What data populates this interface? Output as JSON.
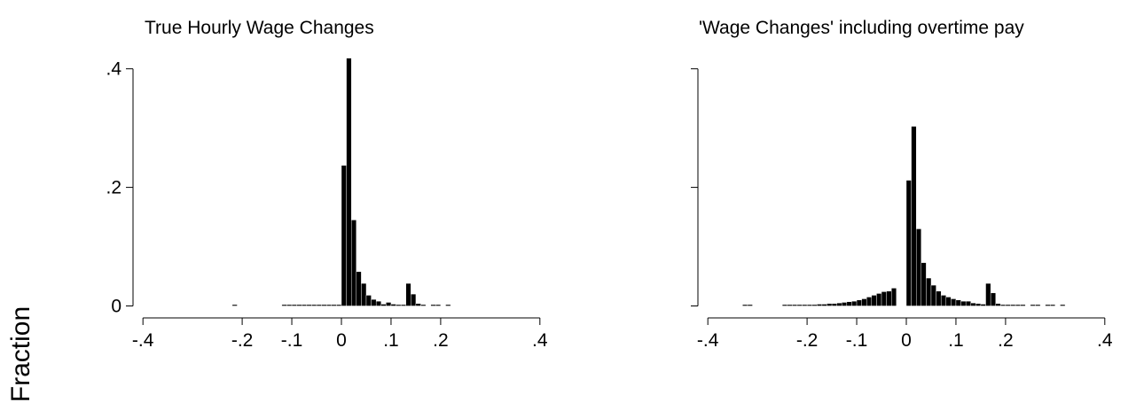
{
  "figure": {
    "ylabel": "Fraction"
  },
  "chart_data": [
    {
      "type": "bar",
      "title": "True Hourly Wage Changes",
      "xlabel": "",
      "ylabel": "Fraction",
      "xlim": [
        -0.42,
        0.42
      ],
      "ylim": [
        0,
        0.41
      ],
      "bin_width": 0.01,
      "x_ticks": [
        -0.4,
        -0.2,
        -0.1,
        0,
        0.1,
        0.2,
        0.4
      ],
      "x_tick_labels": [
        "-.4",
        "-.2",
        "-.1",
        "0",
        ".1",
        ".2",
        ".4"
      ],
      "y_ticks": [
        0,
        0.2,
        0.4
      ],
      "y_tick_labels": [
        "0",
        ".2",
        ".4"
      ],
      "show_y_tick_labels": true,
      "bins": [
        {
          "x": -0.22,
          "y": 0.001
        },
        {
          "x": -0.12,
          "y": 0.001
        },
        {
          "x": -0.11,
          "y": 0.001
        },
        {
          "x": -0.1,
          "y": 0.001
        },
        {
          "x": -0.09,
          "y": 0.001
        },
        {
          "x": -0.08,
          "y": 0.001
        },
        {
          "x": -0.07,
          "y": 0.001
        },
        {
          "x": -0.06,
          "y": 0.001
        },
        {
          "x": -0.05,
          "y": 0.001
        },
        {
          "x": -0.04,
          "y": 0.001
        },
        {
          "x": -0.03,
          "y": 0.001
        },
        {
          "x": -0.02,
          "y": 0.001
        },
        {
          "x": -0.01,
          "y": 0.001
        },
        {
          "x": 0.0,
          "y": 0.237
        },
        {
          "x": 0.01,
          "y": 0.418
        },
        {
          "x": 0.02,
          "y": 0.145
        },
        {
          "x": 0.03,
          "y": 0.058
        },
        {
          "x": 0.04,
          "y": 0.038
        },
        {
          "x": 0.05,
          "y": 0.018
        },
        {
          "x": 0.06,
          "y": 0.011
        },
        {
          "x": 0.07,
          "y": 0.008
        },
        {
          "x": 0.08,
          "y": 0.003
        },
        {
          "x": 0.09,
          "y": 0.006
        },
        {
          "x": 0.1,
          "y": 0.003
        },
        {
          "x": 0.11,
          "y": 0.002
        },
        {
          "x": 0.12,
          "y": 0.002
        },
        {
          "x": 0.13,
          "y": 0.038
        },
        {
          "x": 0.14,
          "y": 0.02
        },
        {
          "x": 0.15,
          "y": 0.004
        },
        {
          "x": 0.16,
          "y": 0.001
        },
        {
          "x": 0.18,
          "y": 0.001
        },
        {
          "x": 0.19,
          "y": 0.001
        },
        {
          "x": 0.21,
          "y": 0.001
        }
      ]
    },
    {
      "type": "bar",
      "title": "'Wage Changes' including overtime pay",
      "xlabel": "",
      "ylabel": "Fraction",
      "xlim": [
        -0.42,
        0.42
      ],
      "ylim": [
        0,
        0.41
      ],
      "bin_width": 0.01,
      "x_ticks": [
        -0.4,
        -0.2,
        -0.1,
        0,
        0.1,
        0.2,
        0.4
      ],
      "x_tick_labels": [
        "-.4",
        "-.2",
        "-.1",
        "0",
        ".1",
        ".2",
        ".4"
      ],
      "y_ticks": [
        0,
        0.2,
        0.4
      ],
      "y_tick_labels": [
        "0",
        ".2",
        ".4"
      ],
      "show_y_tick_labels": false,
      "bins": [
        {
          "x": -0.33,
          "y": 0.001
        },
        {
          "x": -0.32,
          "y": 0.001
        },
        {
          "x": -0.25,
          "y": 0.001
        },
        {
          "x": -0.24,
          "y": 0.001
        },
        {
          "x": -0.23,
          "y": 0.001
        },
        {
          "x": -0.22,
          "y": 0.002
        },
        {
          "x": -0.21,
          "y": 0.002
        },
        {
          "x": -0.2,
          "y": 0.002
        },
        {
          "x": -0.19,
          "y": 0.002
        },
        {
          "x": -0.18,
          "y": 0.003
        },
        {
          "x": -0.17,
          "y": 0.003
        },
        {
          "x": -0.16,
          "y": 0.004
        },
        {
          "x": -0.15,
          "y": 0.004
        },
        {
          "x": -0.14,
          "y": 0.005
        },
        {
          "x": -0.13,
          "y": 0.006
        },
        {
          "x": -0.12,
          "y": 0.007
        },
        {
          "x": -0.11,
          "y": 0.008
        },
        {
          "x": -0.1,
          "y": 0.01
        },
        {
          "x": -0.09,
          "y": 0.012
        },
        {
          "x": -0.08,
          "y": 0.015
        },
        {
          "x": -0.07,
          "y": 0.018
        },
        {
          "x": -0.06,
          "y": 0.021
        },
        {
          "x": -0.05,
          "y": 0.024
        },
        {
          "x": -0.04,
          "y": 0.025
        },
        {
          "x": -0.03,
          "y": 0.03
        },
        {
          "x": 0.0,
          "y": 0.212
        },
        {
          "x": 0.01,
          "y": 0.303
        },
        {
          "x": 0.02,
          "y": 0.13
        },
        {
          "x": 0.03,
          "y": 0.073
        },
        {
          "x": 0.04,
          "y": 0.047
        },
        {
          "x": 0.05,
          "y": 0.035
        },
        {
          "x": 0.06,
          "y": 0.025
        },
        {
          "x": 0.07,
          "y": 0.018
        },
        {
          "x": 0.08,
          "y": 0.015
        },
        {
          "x": 0.09,
          "y": 0.012
        },
        {
          "x": 0.1,
          "y": 0.01
        },
        {
          "x": 0.11,
          "y": 0.008
        },
        {
          "x": 0.12,
          "y": 0.008
        },
        {
          "x": 0.13,
          "y": 0.005
        },
        {
          "x": 0.14,
          "y": 0.004
        },
        {
          "x": 0.15,
          "y": 0.003
        },
        {
          "x": 0.16,
          "y": 0.038
        },
        {
          "x": 0.17,
          "y": 0.022
        },
        {
          "x": 0.18,
          "y": 0.004
        },
        {
          "x": 0.19,
          "y": 0.002
        },
        {
          "x": 0.2,
          "y": 0.001
        },
        {
          "x": 0.21,
          "y": 0.001
        },
        {
          "x": 0.22,
          "y": 0.001
        },
        {
          "x": 0.23,
          "y": 0.001
        },
        {
          "x": 0.25,
          "y": 0.001
        },
        {
          "x": 0.26,
          "y": 0.001
        },
        {
          "x": 0.28,
          "y": 0.001
        },
        {
          "x": 0.29,
          "y": 0.001
        },
        {
          "x": 0.31,
          "y": 0.001
        }
      ]
    }
  ]
}
